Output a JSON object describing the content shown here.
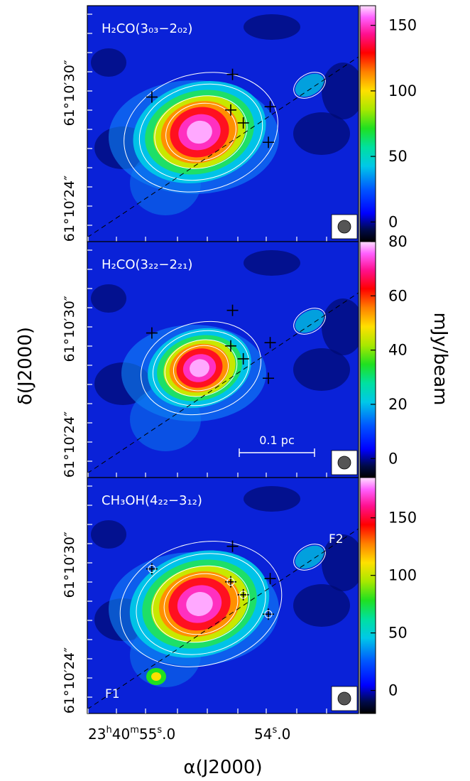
{
  "chart_data": [
    {
      "type": "heatmap",
      "panel_label": "H₂CO(3₀₃−2₀₂)",
      "colorbar": {
        "range": [
          -15,
          165
        ],
        "ticks": [
          "150",
          "100",
          "50",
          "0"
        ],
        "tick_values": [
          150,
          100,
          50,
          0
        ]
      },
      "has_beam": true,
      "scale_bar": null,
      "crosses": [
        {
          "ra_s": 55.14,
          "dec_s": 27.9,
          "circled": false
        },
        {
          "ra_s": 54.69,
          "dec_s": 28.6,
          "circled": false
        },
        {
          "ra_s": 54.7,
          "dec_s": 27.5,
          "circled": false
        },
        {
          "ra_s": 54.63,
          "dec_s": 27.1,
          "circled": false
        },
        {
          "ra_s": 54.48,
          "dec_s": 27.6,
          "circled": false
        },
        {
          "ra_s": 54.49,
          "dec_s": 26.5,
          "circled": false
        }
      ],
      "filament_labels": []
    },
    {
      "type": "heatmap",
      "panel_label": "H₂CO(3₂₂−2₂₁)",
      "colorbar": {
        "range": [
          -7,
          80
        ],
        "ticks": [
          "80",
          "60",
          "40",
          "20",
          "0"
        ],
        "tick_values": [
          80,
          60,
          40,
          20,
          0
        ]
      },
      "has_beam": true,
      "scale_bar": {
        "label": "0.1 pc"
      },
      "crosses": [
        {
          "ra_s": 55.14,
          "dec_s": 27.9,
          "circled": false
        },
        {
          "ra_s": 54.69,
          "dec_s": 28.6,
          "circled": false
        },
        {
          "ra_s": 54.7,
          "dec_s": 27.5,
          "circled": false
        },
        {
          "ra_s": 54.63,
          "dec_s": 27.1,
          "circled": false
        },
        {
          "ra_s": 54.48,
          "dec_s": 27.6,
          "circled": false
        },
        {
          "ra_s": 54.49,
          "dec_s": 26.5,
          "circled": false
        }
      ],
      "filament_labels": []
    },
    {
      "type": "heatmap",
      "panel_label": "CH₃OH(4₂₂−3₁₂)",
      "colorbar": {
        "range": [
          -20,
          185
        ],
        "ticks": [
          "150",
          "100",
          "50",
          "0"
        ],
        "tick_values": [
          150,
          100,
          50,
          0
        ]
      },
      "has_beam": true,
      "scale_bar": null,
      "crosses": [
        {
          "ra_s": 55.14,
          "dec_s": 27.9,
          "circled": true
        },
        {
          "ra_s": 54.69,
          "dec_s": 28.6,
          "circled": false
        },
        {
          "ra_s": 54.7,
          "dec_s": 27.5,
          "circled": true
        },
        {
          "ra_s": 54.63,
          "dec_s": 27.1,
          "circled": true
        },
        {
          "ra_s": 54.48,
          "dec_s": 27.6,
          "circled": false
        },
        {
          "ra_s": 54.49,
          "dec_s": 26.5,
          "circled": true
        }
      ],
      "filament_labels": [
        "F1",
        "F2"
      ]
    }
  ],
  "axes": {
    "ylabel": "δ(J2000)",
    "xlabel": "α(J2000)",
    "colorbar_label": "mJy/beam",
    "y_tick_labels": [
      "61°10′30″",
      "61°10′24″"
    ],
    "x_tick_labels": [
      {
        "h": "23",
        "m": "40",
        "s": "55",
        "frac": ".0"
      },
      {
        "h": "",
        "m": "",
        "s": "54",
        "frac": ".0"
      }
    ]
  },
  "colors": {
    "frame": "#000000",
    "contour": "#ffffff",
    "background": "#ffffff"
  }
}
